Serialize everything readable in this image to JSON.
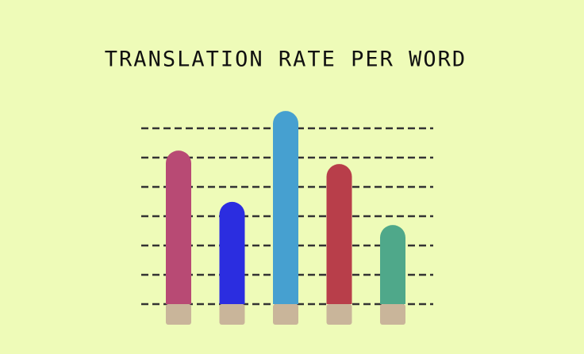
{
  "chart_data": {
    "type": "bar",
    "title": "TRANSLATION RATE PER WORD",
    "values": [
      5.24,
      3.49,
      6.59,
      4.78,
      2.7
    ],
    "colors": [
      "#b84a74",
      "#2b2de0",
      "#46a0d0",
      "#b83e4a",
      "#4fa88a"
    ],
    "ylim": [
      0,
      7
    ],
    "yticks": [
      0,
      1,
      2,
      3,
      4,
      5,
      6
    ],
    "grid": true
  }
}
